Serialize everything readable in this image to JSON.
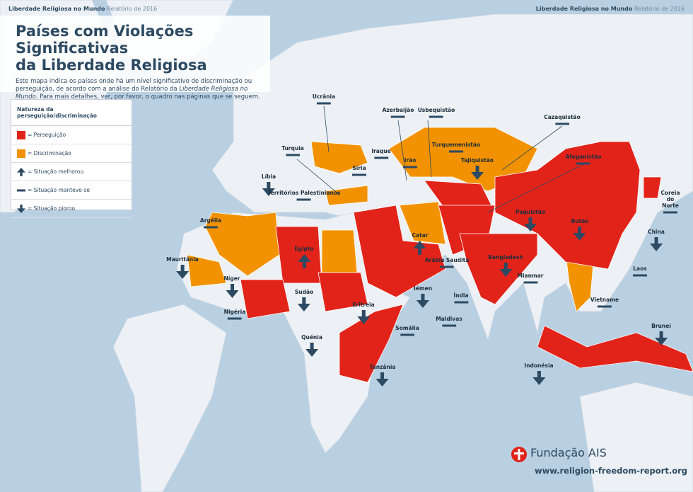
{
  "header": {
    "report": "Liberdade Religiosa no Mundo",
    "year": "Relatório de 2016"
  },
  "title": {
    "line1": "Países com Violações Significativas",
    "line2": "da Liberdade Religiosa"
  },
  "description": {
    "before": "Este mapa indica os países onde há um nível significativo de discriminação ou perseguição, de acordo com a análise do Relatório da",
    "italic": "Liberdade Religiosa no Mundo",
    "after": ". Para mais detalhes, ver, por favor, o quadro nas páginas que se seguem."
  },
  "legend": {
    "title": "Natureza da perseguição/discriminação",
    "items": [
      {
        "label": "= Perseguição",
        "symbol": "persecution"
      },
      {
        "label": "= Discriminação",
        "symbol": "discrimination"
      },
      {
        "label": "= Situação melhorou",
        "symbol": "improved"
      },
      {
        "label": "= Situação manteve-se",
        "symbol": "same"
      },
      {
        "label": "= Situação piorou",
        "symbol": "worse"
      }
    ]
  },
  "countries": [
    {
      "label": "Ucrânia",
      "status": "same"
    },
    {
      "label": "Azerbaijão",
      "status": "same"
    },
    {
      "label": "Usbequistão",
      "status": "same"
    },
    {
      "label": "Cazaquistão",
      "status": "same"
    },
    {
      "label": "Turquemenistão",
      "status": "same"
    },
    {
      "label": "Tajiquistão",
      "status": "worse"
    },
    {
      "label": "Afeganistão",
      "status": "same"
    },
    {
      "label": "Turquia",
      "status": "same"
    },
    {
      "label": "Iraque",
      "status": "same"
    },
    {
      "label": "Síria",
      "status": "same"
    },
    {
      "label": "Irão",
      "status": "same"
    },
    {
      "label": "Líbia",
      "status": "worse"
    },
    {
      "label": "Territórios Palestinianos",
      "status": "same"
    },
    {
      "label": "Coreia do Norte",
      "status": "same"
    },
    {
      "label": "Argélia",
      "status": "same"
    },
    {
      "label": "Paquistão",
      "status": "worse"
    },
    {
      "label": "Butão",
      "status": "worse"
    },
    {
      "label": "Catar",
      "status": "improved"
    },
    {
      "label": "Egipto",
      "status": "improved"
    },
    {
      "label": "China",
      "status": "worse"
    },
    {
      "label": "Mauritânia",
      "status": "worse"
    },
    {
      "label": "Arábia Saudita",
      "status": "same"
    },
    {
      "label": "Bangladesh",
      "status": "worse"
    },
    {
      "label": "Mianmar",
      "status": "same"
    },
    {
      "label": "Laos",
      "status": "same"
    },
    {
      "label": "Níger",
      "status": "worse"
    },
    {
      "label": "Sudão",
      "status": "worse"
    },
    {
      "label": "Iémen",
      "status": "worse"
    },
    {
      "label": "Índia",
      "status": "same"
    },
    {
      "label": "Eritreia",
      "status": "worse"
    },
    {
      "label": "Vietname",
      "status": "same"
    },
    {
      "label": "Nigéria",
      "status": "same"
    },
    {
      "label": "Maldivas",
      "status": "same"
    },
    {
      "label": "Brunei",
      "status": "worse"
    },
    {
      "label": "Somália",
      "status": "same"
    },
    {
      "label": "Quénia",
      "status": "worse"
    },
    {
      "label": "Tanzânia",
      "status": "worse"
    },
    {
      "label": "Indonésia",
      "status": "worse"
    }
  ],
  "footer": {
    "org": "Fundação AIS",
    "url": "www.religion-freedom-report.org"
  }
}
